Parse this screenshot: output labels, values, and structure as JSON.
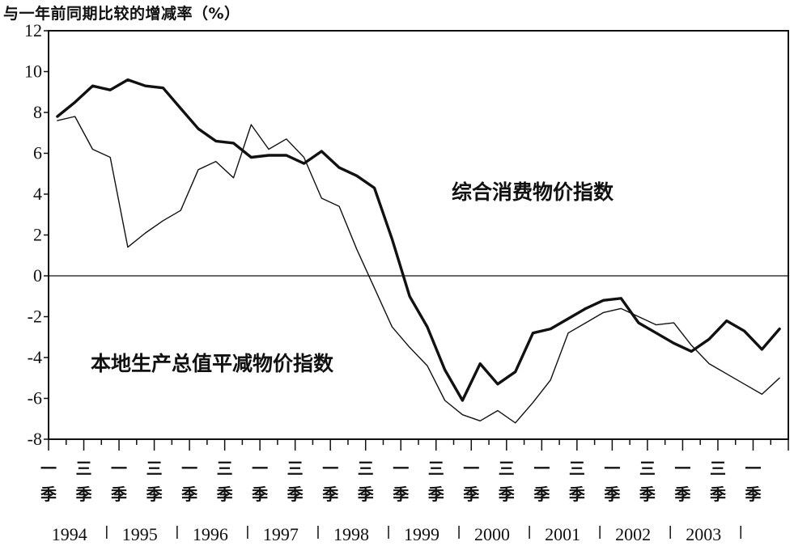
{
  "chart_data": {
    "type": "line",
    "ylabel": "与一年前同期比较的增减率（%）",
    "ylim": [
      -8,
      12
    ],
    "yticks": [
      -8,
      -6,
      -4,
      -2,
      0,
      2,
      4,
      6,
      8,
      10,
      12
    ],
    "quarter_labels": [
      "一季",
      "三季"
    ],
    "years": [
      "1994",
      "1995",
      "1996",
      "1997",
      "1998",
      "1999",
      "2000",
      "2001",
      "2002",
      "2003"
    ],
    "annotations": [
      "综合消费物价指数",
      "本地生产总值平减物价指数"
    ],
    "series": [
      {
        "name": "综合消费物价指数",
        "style": "thick",
        "values": [
          7.8,
          8.5,
          9.3,
          9.1,
          9.6,
          9.3,
          9.2,
          8.2,
          7.2,
          6.6,
          6.5,
          5.8,
          5.9,
          5.9,
          5.5,
          6.1,
          5.3,
          4.9,
          4.3,
          1.8,
          -1.0,
          -2.5,
          -4.6,
          -6.1,
          -4.3,
          -5.3,
          -4.7,
          -2.8,
          -2.6,
          -2.1,
          -1.6,
          -1.2,
          -1.1,
          -2.3,
          -2.8,
          -3.3,
          -3.7,
          -3.1,
          -2.2,
          -2.7,
          -3.6,
          -2.6
        ]
      },
      {
        "name": "本地生产总值平减物价指数",
        "style": "thin",
        "values": [
          7.6,
          7.8,
          6.2,
          5.8,
          1.4,
          2.1,
          2.7,
          3.2,
          5.2,
          5.6,
          4.8,
          7.4,
          6.2,
          6.7,
          5.8,
          3.8,
          3.4,
          1.3,
          -0.6,
          -2.5,
          -3.5,
          -4.4,
          -6.1,
          -6.8,
          -7.1,
          -6.6,
          -7.2,
          -6.2,
          -5.1,
          -2.8,
          -2.3,
          -1.8,
          -1.6,
          -2.0,
          -2.4,
          -2.3,
          -3.4,
          -4.3,
          -4.8,
          -5.3,
          -5.8,
          -5.0
        ]
      }
    ]
  }
}
